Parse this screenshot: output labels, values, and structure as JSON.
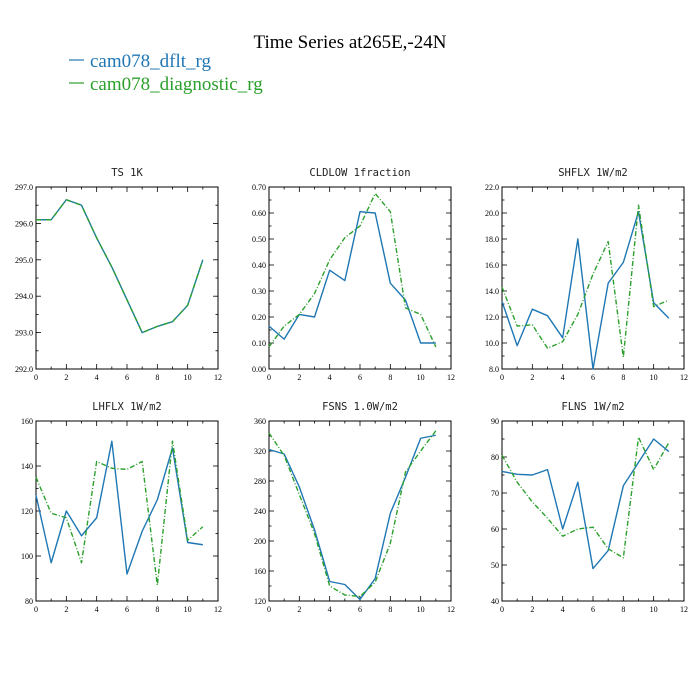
{
  "figure": {
    "title": "Time Series at265E,-24N",
    "legend": [
      {
        "name": "cam078_dflt_rg",
        "color": "#1f77b4"
      },
      {
        "name": "cam078_diagnostic_rg",
        "color": "#2ca02c"
      }
    ]
  },
  "chart_data": [
    {
      "type": "line",
      "title": "TS   1K",
      "xlim": [
        0,
        12
      ],
      "ylim": [
        292.0,
        297.0
      ],
      "xticks": [
        0,
        2,
        4,
        6,
        8,
        10,
        12
      ],
      "yticks": [
        "292.0",
        "293.0",
        "294.0",
        "295.0",
        "296.0",
        "297.0"
      ],
      "x": [
        0,
        1,
        2,
        3,
        4,
        5,
        6,
        7,
        8,
        9,
        10,
        11
      ],
      "series": [
        {
          "name": "cam078_dflt_rg",
          "color": "#1f77b4",
          "style": "solid",
          "values": [
            296.1,
            296.1,
            296.65,
            296.5,
            295.6,
            294.8,
            293.9,
            293.0,
            293.17,
            293.3,
            293.75,
            295.0
          ]
        },
        {
          "name": "cam078_diagnostic_rg",
          "color": "#2ca02c",
          "style": "dashed",
          "values": [
            296.1,
            296.1,
            296.65,
            296.5,
            295.6,
            294.8,
            293.9,
            293.0,
            293.17,
            293.3,
            293.75,
            295.0
          ]
        }
      ]
    },
    {
      "type": "line",
      "title": "CLDLOW   1fraction",
      "xlim": [
        0,
        12
      ],
      "ylim": [
        0.0,
        0.7
      ],
      "xticks": [
        0,
        2,
        4,
        6,
        8,
        10,
        12
      ],
      "yticks": [
        "0.00",
        "0.10",
        "0.20",
        "0.30",
        "0.40",
        "0.50",
        "0.60",
        "0.70"
      ],
      "x": [
        0,
        1,
        2,
        3,
        4,
        5,
        6,
        7,
        8,
        9,
        10,
        11
      ],
      "series": [
        {
          "name": "cam078_dflt_rg",
          "color": "#1f77b4",
          "style": "solid",
          "values": [
            0.165,
            0.115,
            0.21,
            0.2,
            0.38,
            0.34,
            0.605,
            0.6,
            0.33,
            0.265,
            0.1,
            0.1
          ]
        },
        {
          "name": "cam078_diagnostic_rg",
          "color": "#2ca02c",
          "style": "dashed",
          "values": [
            0.085,
            0.165,
            0.21,
            0.29,
            0.42,
            0.505,
            0.55,
            0.675,
            0.605,
            0.235,
            0.21,
            0.085
          ]
        }
      ]
    },
    {
      "type": "line",
      "title": "SHFLX   1W/m2",
      "xlim": [
        0,
        12
      ],
      "ylim": [
        8.0,
        22.0
      ],
      "xticks": [
        0,
        2,
        4,
        6,
        8,
        10,
        12
      ],
      "yticks": [
        "8.0",
        "10.0",
        "12.0",
        "14.0",
        "16.0",
        "18.0",
        "20.0",
        "22.0"
      ],
      "x": [
        0,
        1,
        2,
        3,
        4,
        5,
        6,
        7,
        8,
        9,
        10,
        11
      ],
      "series": [
        {
          "name": "cam078_dflt_rg",
          "color": "#1f77b4",
          "style": "solid",
          "values": [
            13.2,
            9.8,
            12.6,
            12.1,
            10.4,
            18.0,
            8.0,
            14.6,
            16.2,
            20.1,
            13.1,
            11.9
          ]
        },
        {
          "name": "cam078_diagnostic_rg",
          "color": "#2ca02c",
          "style": "dashed",
          "values": [
            14.3,
            11.3,
            11.4,
            9.6,
            10.1,
            12.2,
            15.3,
            17.8,
            8.9,
            20.6,
            12.8,
            13.3
          ]
        }
      ]
    },
    {
      "type": "line",
      "title": "LHFLX   1W/m2",
      "xlim": [
        0,
        12
      ],
      "ylim": [
        80,
        160
      ],
      "xticks": [
        0,
        2,
        4,
        6,
        8,
        10,
        12
      ],
      "yticks": [
        "80",
        "100",
        "120",
        "140",
        "160"
      ],
      "x": [
        0,
        1,
        2,
        3,
        4,
        5,
        6,
        7,
        8,
        9,
        10,
        11
      ],
      "series": [
        {
          "name": "cam078_dflt_rg",
          "color": "#1f77b4",
          "style": "solid",
          "values": [
            127,
            97,
            120,
            109,
            117,
            151,
            92,
            111,
            125,
            148,
            106,
            105
          ]
        },
        {
          "name": "cam078_diagnostic_rg",
          "color": "#2ca02c",
          "style": "dashed",
          "values": [
            135,
            119,
            117,
            97,
            142,
            139,
            138.5,
            142,
            87,
            151,
            107,
            113
          ]
        }
      ]
    },
    {
      "type": "line",
      "title": "FSNS   1.0W/m2",
      "xlim": [
        0,
        12
      ],
      "ylim": [
        120,
        360
      ],
      "xticks": [
        0,
        2,
        4,
        6,
        8,
        10,
        12
      ],
      "yticks": [
        "120",
        "160",
        "200",
        "240",
        "280",
        "320",
        "360"
      ],
      "x": [
        0,
        1,
        2,
        3,
        4,
        5,
        6,
        7,
        8,
        9,
        10,
        11
      ],
      "series": [
        {
          "name": "cam078_dflt_rg",
          "color": "#1f77b4",
          "style": "solid",
          "values": [
            322,
            316,
            272,
            215,
            146,
            142,
            122,
            150,
            237,
            285,
            337,
            341
          ]
        },
        {
          "name": "cam078_diagnostic_rg",
          "color": "#2ca02c",
          "style": "dashed",
          "values": [
            344,
            314,
            262,
            210,
            140,
            128,
            126,
            145,
            197,
            292,
            320,
            347
          ]
        }
      ]
    },
    {
      "type": "line",
      "title": "FLNS   1W/m2",
      "xlim": [
        0,
        12
      ],
      "ylim": [
        40,
        90
      ],
      "xticks": [
        0,
        2,
        4,
        6,
        8,
        10,
        12
      ],
      "yticks": [
        "40",
        "50",
        "60",
        "70",
        "80",
        "90"
      ],
      "x": [
        0,
        1,
        2,
        3,
        4,
        5,
        6,
        7,
        8,
        9,
        10,
        11
      ],
      "series": [
        {
          "name": "cam078_dflt_rg",
          "color": "#1f77b4",
          "style": "solid",
          "values": [
            76,
            75.2,
            75,
            76.5,
            60,
            73,
            49,
            54,
            72,
            78.5,
            85,
            81.5
          ]
        },
        {
          "name": "cam078_diagnostic_rg",
          "color": "#2ca02c",
          "style": "dashed",
          "values": [
            80.5,
            73,
            67.5,
            63,
            58,
            60,
            60.5,
            54.5,
            52,
            85.5,
            76.5,
            84
          ]
        }
      ]
    }
  ]
}
